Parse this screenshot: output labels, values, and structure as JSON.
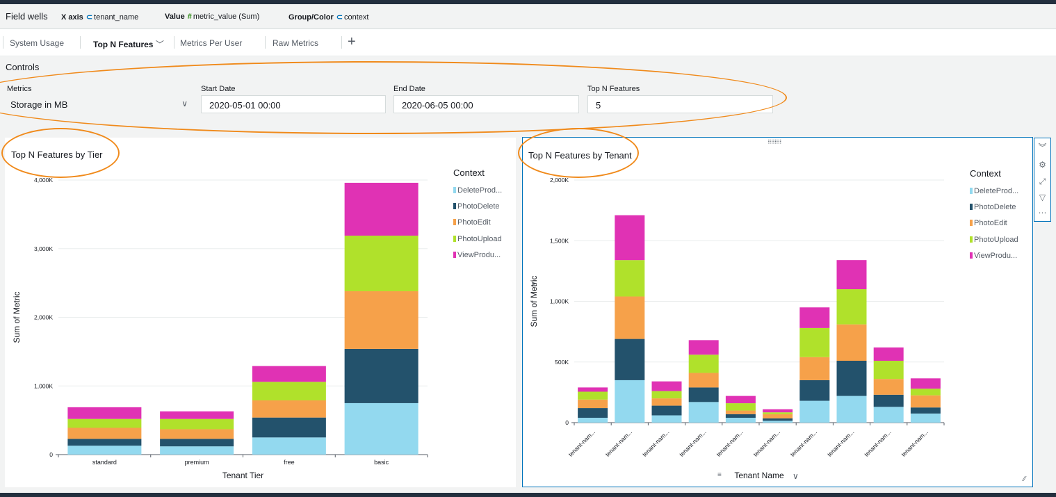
{
  "field_wells": {
    "title": "Field wells",
    "x_axis": {
      "label": "X axis",
      "field": "tenant_name"
    },
    "value": {
      "label": "Value",
      "field": "metric_value (Sum)"
    },
    "group": {
      "label": "Group/Color",
      "field": "context"
    }
  },
  "tabs": [
    {
      "label": "System Usage"
    },
    {
      "label": "Top N Features",
      "active": true
    },
    {
      "label": "Metrics Per User"
    },
    {
      "label": "Raw Metrics"
    }
  ],
  "tab_add_label": "+",
  "controls": {
    "title": "Controls",
    "metrics": {
      "label": "Metrics",
      "value": "Storage in MB"
    },
    "start_date": {
      "label": "Start Date",
      "value": "2020-05-01 00:00"
    },
    "end_date": {
      "label": "End Date",
      "value": "2020-06-05 00:00"
    },
    "top_n": {
      "label": "Top N Features",
      "value": "5"
    }
  },
  "colors": {
    "DeleteProduct": "#93d9ef",
    "PhotoDelete": "#23526c",
    "PhotoEdit": "#f6a14a",
    "PhotoUpload": "#b0e12b",
    "ViewProduct": "#e032b4",
    "annotation": "#f08a1b",
    "selection": "#0073bb"
  },
  "chart_data": [
    {
      "type": "bar",
      "stacked": true,
      "title": "Top N Features by Tier",
      "xlabel": "Tenant Tier",
      "ylabel": "Sum of Metric",
      "ylim": [
        0,
        4000000
      ],
      "yticks": [
        "0",
        "1,000K",
        "2,000K",
        "3,000K",
        "4,000K"
      ],
      "yticks_values": [
        0,
        1000000,
        2000000,
        3000000,
        4000000
      ],
      "grid": true,
      "legend_title": "Context",
      "legend_position": "right",
      "categories": [
        "standard",
        "premium",
        "free",
        "basic"
      ],
      "series": [
        {
          "name": "DeleteProd...",
          "color_key": "DeleteProduct",
          "values": [
            130000,
            120000,
            250000,
            750000
          ]
        },
        {
          "name": "PhotoDelete",
          "color_key": "PhotoDelete",
          "values": [
            100000,
            110000,
            290000,
            790000
          ]
        },
        {
          "name": "PhotoEdit",
          "color_key": "PhotoEdit",
          "values": [
            160000,
            140000,
            250000,
            840000
          ]
        },
        {
          "name": "PhotoUpload",
          "color_key": "PhotoUpload",
          "values": [
            130000,
            150000,
            270000,
            810000
          ]
        },
        {
          "name": "ViewProdu...",
          "color_key": "ViewProduct",
          "values": [
            170000,
            110000,
            230000,
            770000
          ]
        }
      ]
    },
    {
      "type": "bar",
      "stacked": true,
      "title": "Top N Features by Tenant",
      "xlabel": "Tenant Name",
      "ylabel": "Sum of Metric",
      "ylim": [
        0,
        2000000
      ],
      "yticks": [
        "0",
        "500K",
        "1,000K",
        "1,500K",
        "2,000K"
      ],
      "yticks_values": [
        0,
        500000,
        1000000,
        1500000,
        2000000
      ],
      "grid": true,
      "legend_title": "Context",
      "legend_position": "right",
      "categories": [
        "tenant-nam...",
        "tenant-nam...",
        "tenant-nam...",
        "tenant-nam...",
        "tenant-nam...",
        "tenant-nam...",
        "tenant-nam...",
        "tenant-nam...",
        "tenant-nam...",
        "tenant-nam..."
      ],
      "series": [
        {
          "name": "DeleteProd...",
          "color_key": "DeleteProduct",
          "values": [
            40000,
            350000,
            60000,
            170000,
            40000,
            15000,
            180000,
            220000,
            130000,
            75000
          ]
        },
        {
          "name": "PhotoDelete",
          "color_key": "PhotoDelete",
          "values": [
            80000,
            340000,
            80000,
            120000,
            30000,
            20000,
            170000,
            290000,
            100000,
            50000
          ]
        },
        {
          "name": "PhotoEdit",
          "color_key": "PhotoEdit",
          "values": [
            70000,
            350000,
            60000,
            120000,
            30000,
            35000,
            190000,
            300000,
            130000,
            100000
          ]
        },
        {
          "name": "PhotoUpload",
          "color_key": "PhotoUpload",
          "values": [
            65000,
            300000,
            60000,
            150000,
            60000,
            15000,
            240000,
            290000,
            150000,
            55000
          ]
        },
        {
          "name": "ViewProdu...",
          "color_key": "ViewProduct",
          "values": [
            35000,
            370000,
            80000,
            120000,
            60000,
            25000,
            170000,
            240000,
            110000,
            85000
          ]
        }
      ]
    }
  ]
}
